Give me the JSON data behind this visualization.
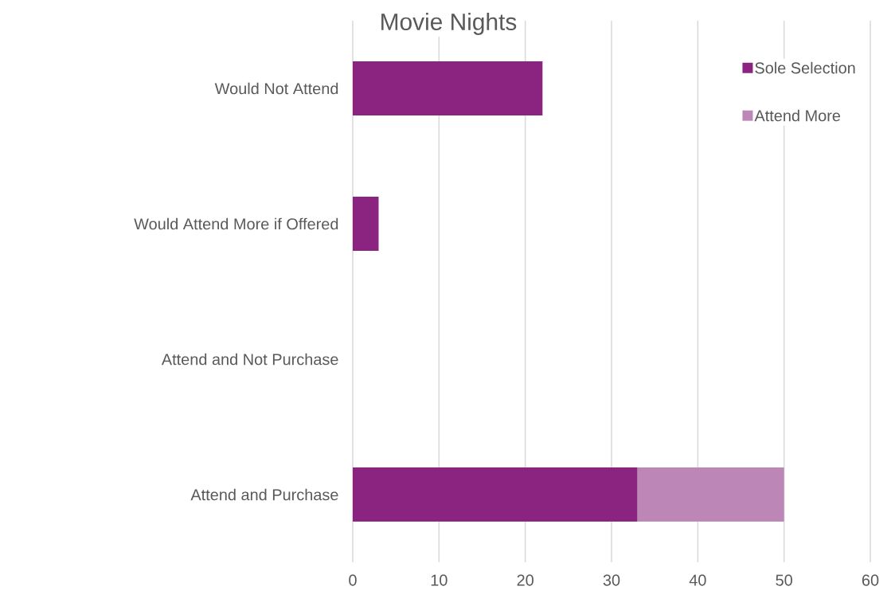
{
  "chart_data": {
    "type": "bar",
    "orientation": "horizontal",
    "stacked": true,
    "title": "Movie Nights",
    "categories": [
      "Would Not Attend",
      "Would Attend More if Offered",
      "Attend and Not Purchase",
      "Attend and Purchase"
    ],
    "series": [
      {
        "name": "Sole Selection",
        "color": "#8b2480",
        "values": [
          22,
          3,
          0,
          33
        ]
      },
      {
        "name": "Attend More",
        "color": "#bc87b6",
        "values": [
          0,
          0,
          0,
          17
        ]
      }
    ],
    "xlim": [
      0,
      60
    ],
    "xticks": [
      0,
      10,
      20,
      30,
      40,
      50,
      60
    ],
    "grid": "x",
    "legend": "top right"
  }
}
